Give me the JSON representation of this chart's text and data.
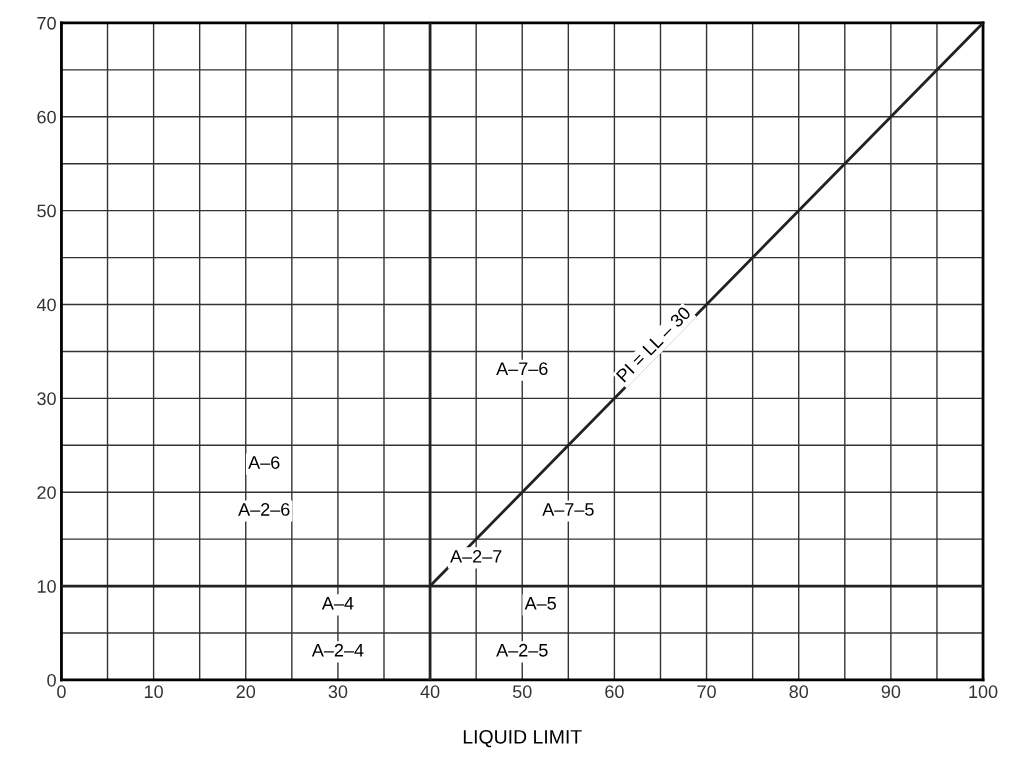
{
  "chart_data": {
    "type": "line",
    "xlabel": "LIQUID LIMIT",
    "xlim": [
      0,
      100
    ],
    "ylim": [
      0,
      70
    ],
    "xticks": [
      0,
      {
        "value": 5,
        "label": null
      },
      10,
      {
        "value": 15,
        "label": null
      },
      20,
      {
        "value": 25,
        "label": null
      },
      30,
      {
        "value": 35,
        "label": null
      },
      40,
      {
        "value": 45,
        "label": null
      },
      50,
      {
        "value": 55,
        "label": null
      },
      60,
      {
        "value": 65,
        "label": null
      },
      70,
      {
        "value": 75,
        "label": null
      },
      80,
      {
        "value": 85,
        "label": null
      },
      90,
      {
        "value": 95,
        "label": null
      },
      100
    ],
    "yticks": [
      0,
      {
        "value": 5,
        "label": null
      },
      10,
      {
        "value": 15,
        "label": null
      },
      20,
      {
        "value": 25,
        "label": null
      },
      30,
      {
        "value": 35,
        "label": null
      },
      40,
      {
        "value": 45,
        "label": null
      },
      50,
      {
        "value": 55,
        "label": null
      },
      60,
      {
        "value": 65,
        "label": null
      },
      70
    ],
    "grid": true,
    "series": [
      {
        "x": [
          40,
          100
        ],
        "values": [
          10,
          70
        ],
        "color": "#222222"
      },
      {
        "x": [
          0,
          100
        ],
        "values": [
          10,
          10
        ],
        "color": "#222222"
      },
      {
        "x": [
          40,
          40
        ],
        "values": [
          0,
          70
        ],
        "color": "#222222"
      }
    ],
    "annotations": [
      {
        "text": "PI = LL – 30",
        "x": 65,
        "y": 35
      },
      "A–6",
      "A–2–6",
      "A–7–6",
      "A–7–5",
      "A–2–7",
      "A–4",
      "A–2–4",
      "A–5",
      "A–2–5"
    ]
  }
}
